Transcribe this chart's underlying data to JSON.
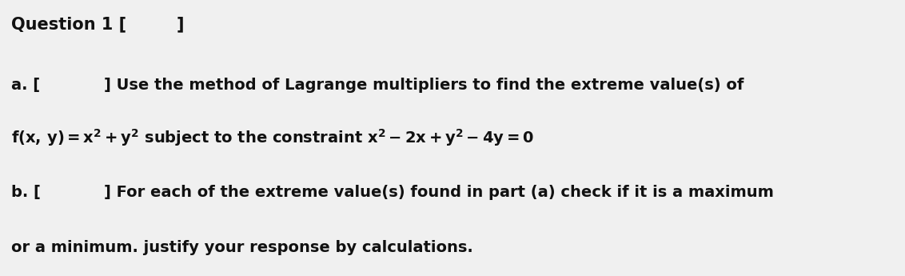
{
  "background_color": "#f0f0f0",
  "text_color": "#111111",
  "fig_width": 11.32,
  "fig_height": 3.45,
  "dpi": 100,
  "title": "Question 1 [",
  "title_bracket": "]",
  "a_label": "a. [",
  "a_bracket": "] Use the method of Lagrange multipliers to find the extreme value(s) of",
  "a_eq": "f(x, y) = x^2 + y^2 subject to the constraint x^2 - 2x + y^2 - 4y = 0",
  "b_label": "b.",
  "b_bracket": "] For each of the extreme value(s) found in part (a) check if it is a maximum",
  "b_cont": "or a minimum. justify your response by calculations.",
  "fontsize_title": 15,
  "fontsize_body": 14
}
